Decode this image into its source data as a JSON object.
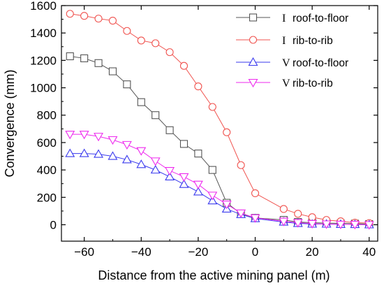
{
  "chart_data": {
    "type": "line",
    "xlabel": "Distance from the active mining panel (m)",
    "ylabel": "Convergence (mm)",
    "xlim": [
      -68,
      43
    ],
    "ylim": [
      -120,
      1600
    ],
    "xticks": [
      -60,
      -40,
      -20,
      0,
      20,
      40
    ],
    "yticks": [
      0,
      200,
      400,
      600,
      800,
      1000,
      1200,
      1400,
      1600
    ],
    "grid": false,
    "legend_position": "top-right",
    "series": [
      {
        "name_roman": "I",
        "name_text": "roof-to-floor",
        "color": "#555555",
        "marker": "square",
        "x": [
          -65,
          -60,
          -55,
          -50,
          -45,
          -40,
          -35,
          -30,
          -25,
          -20,
          -15,
          -10,
          -5,
          0,
          10,
          15,
          20,
          25,
          30,
          35,
          40
        ],
        "y": [
          1230,
          1215,
          1180,
          1120,
          1025,
          895,
          800,
          690,
          590,
          520,
          400,
          160,
          80,
          50,
          35,
          20,
          15,
          12,
          10,
          8,
          5
        ]
      },
      {
        "name_roman": "I",
        "name_text": "rib-to-rib",
        "color": "#f0534f",
        "marker": "circle",
        "x": [
          -65,
          -60,
          -55,
          -50,
          -45,
          -40,
          -35,
          -30,
          -25,
          -20,
          -15,
          -10,
          -5,
          0,
          10,
          15,
          20,
          25,
          30,
          35,
          40
        ],
        "y": [
          1540,
          1525,
          1505,
          1490,
          1415,
          1345,
          1325,
          1260,
          1160,
          1010,
          860,
          675,
          435,
          230,
          115,
          80,
          55,
          35,
          25,
          15,
          12
        ]
      },
      {
        "name_roman": "V",
        "name_text": "roof-to-floor",
        "color": "#3a3aee",
        "marker": "triangle-up",
        "x": [
          -65,
          -60,
          -55,
          -50,
          -45,
          -40,
          -35,
          -30,
          -25,
          -20,
          -15,
          -10,
          -5,
          0,
          10,
          15,
          20,
          25,
          30,
          35,
          40
        ],
        "y": [
          520,
          520,
          515,
          500,
          475,
          440,
          400,
          350,
          295,
          240,
          175,
          115,
          75,
          45,
          20,
          10,
          5,
          5,
          3,
          2,
          0
        ]
      },
      {
        "name_roman": "V",
        "name_text": "rib-to-rib",
        "color": "#ee2aee",
        "marker": "triangle-down",
        "x": [
          -65,
          -60,
          -55,
          -50,
          -45,
          -40,
          -35,
          -30,
          -25,
          -20,
          -15,
          -10,
          -5,
          0,
          10,
          15,
          20,
          25,
          30,
          35,
          40
        ],
        "y": [
          660,
          660,
          645,
          620,
          585,
          540,
          465,
          395,
          350,
          295,
          215,
          150,
          85,
          50,
          25,
          15,
          8,
          5,
          3,
          2,
          0
        ]
      }
    ]
  }
}
